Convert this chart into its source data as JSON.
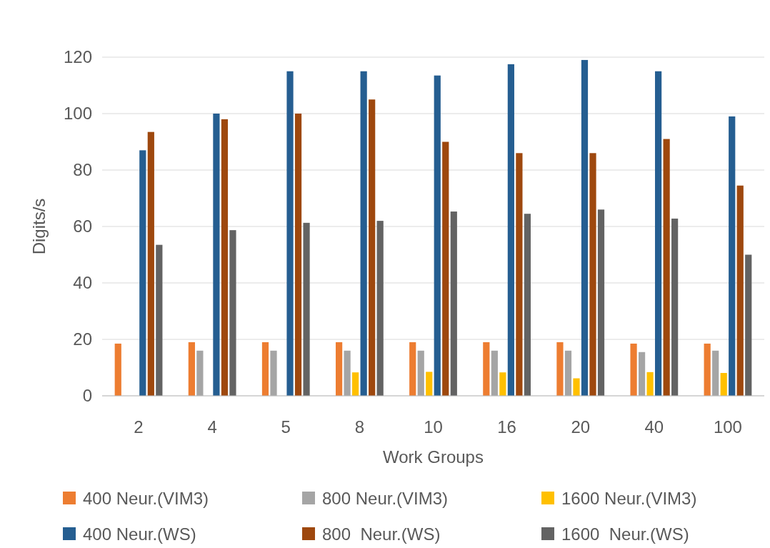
{
  "chart_data": {
    "type": "bar",
    "xlabel": "Work Groups",
    "ylabel": "Digits/s",
    "categories": [
      "2",
      "4",
      "5",
      "8",
      "10",
      "16",
      "20",
      "40",
      "100"
    ],
    "ylim": [
      0,
      120
    ],
    "yticks": [
      0,
      20,
      40,
      60,
      80,
      100,
      120
    ],
    "grid": "y",
    "legend": "bottom",
    "series": [
      {
        "name": "400 Neur.(VIM3)",
        "color": "#ed7d31",
        "values": [
          18.5,
          19,
          19,
          19,
          19,
          19,
          19,
          18.5,
          18.5
        ]
      },
      {
        "name": "800 Neur.(VIM3)",
        "color": "#a5a5a5",
        "values": [
          null,
          16,
          16,
          16,
          16,
          16,
          16,
          15.5,
          16
        ]
      },
      {
        "name": "1600 Neur.(VIM3)",
        "color": "#ffc000",
        "values": [
          null,
          null,
          null,
          8.3,
          8.5,
          8.3,
          6.2,
          8.4,
          8.1
        ]
      },
      {
        "name": "400 Neur.(WS)",
        "color": "#255e91",
        "values": [
          87,
          100,
          115,
          115,
          113.5,
          117.5,
          119,
          115,
          99
        ]
      },
      {
        "name": "800  Neur.(WS)",
        "color": "#9e480e",
        "values": [
          93.5,
          98,
          100,
          105,
          90,
          86,
          86,
          91,
          74.5
        ]
      },
      {
        "name": "1600  Neur.(WS)",
        "color": "#636363",
        "values": [
          53.5,
          58.7,
          61.3,
          62,
          65.3,
          64.5,
          66,
          62.8,
          50
        ]
      }
    ]
  }
}
